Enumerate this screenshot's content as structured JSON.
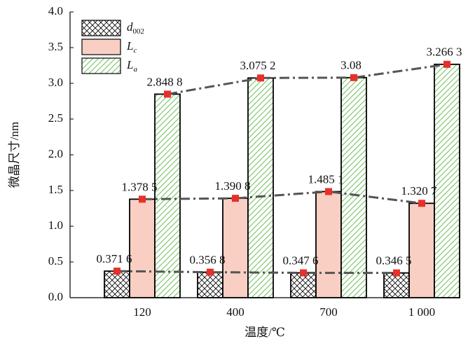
{
  "chart_data": {
    "type": "bar",
    "x_label": "温度/℃",
    "y_label": "微晶尺寸/nm",
    "categories": [
      "120",
      "400",
      "700",
      "1 000"
    ],
    "series": [
      {
        "name": "d002",
        "color": "#000000",
        "fill": "crosshatch",
        "values": [
          0.3716,
          0.3568,
          0.3476,
          0.3465
        ],
        "value_labels": [
          "0.371 6",
          "0.356 8",
          "0.347 6",
          "0.346 5"
        ]
      },
      {
        "name": "Lc",
        "color": "#f9cfc4",
        "fill": "solid",
        "values": [
          1.3785,
          1.3908,
          1.4851,
          1.3207
        ],
        "value_labels": [
          "1.378 5",
          "1.390 8",
          "1.485 1",
          "1.320 7"
        ]
      },
      {
        "name": "La",
        "color": "#6dbf5b",
        "fill": "diagonal",
        "values": [
          2.8488,
          3.0752,
          3.08,
          3.2663
        ],
        "value_labels": [
          "2.848 8",
          "3.075 2",
          "3.08",
          "3.266 3"
        ]
      }
    ],
    "ylim": [
      0,
      4
    ],
    "yticks": [
      {
        "value": 0,
        "label": "0.0"
      },
      0.5,
      {
        "value": 1,
        "label": "1.0"
      },
      1.5,
      {
        "value": 2,
        "label": "2.0"
      },
      2.5,
      {
        "value": 3,
        "label": "3.0"
      },
      3.5,
      {
        "value": 4,
        "label": "4.0"
      }
    ],
    "legend": "upper left",
    "line_color": "#555555",
    "marker_color": "#e8302a"
  }
}
